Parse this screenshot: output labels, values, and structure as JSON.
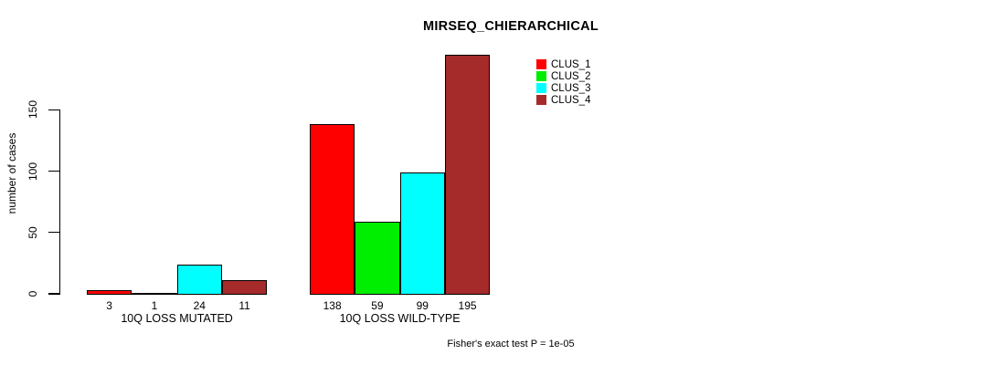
{
  "chart_data": {
    "type": "bar",
    "title": "MIRSEQ_CHIERARCHICAL",
    "ylabel": "number of cases",
    "xlabel": "",
    "categories": [
      "10Q LOSS MUTATED",
      "10Q LOSS WILD-TYPE"
    ],
    "series": [
      {
        "name": "CLUS_1",
        "color": "#ff0000",
        "values": [
          3,
          138
        ]
      },
      {
        "name": "CLUS_2",
        "color": "#00ee00",
        "values": [
          1,
          59
        ]
      },
      {
        "name": "CLUS_3",
        "color": "#00ffff",
        "values": [
          24,
          99
        ]
      },
      {
        "name": "CLUS_4",
        "color": "#a52a2a",
        "values": [
          11,
          195
        ]
      }
    ],
    "yticks": [
      0,
      50,
      100,
      150
    ],
    "ylim": [
      0,
      200
    ],
    "bar_value_labels": true,
    "grid": false,
    "legend_position": "top-right",
    "annotation": "Fisher's exact test P = 1e-05",
    "axis_color": "#000000",
    "text_color": "#000000",
    "background": "#ffffff"
  }
}
